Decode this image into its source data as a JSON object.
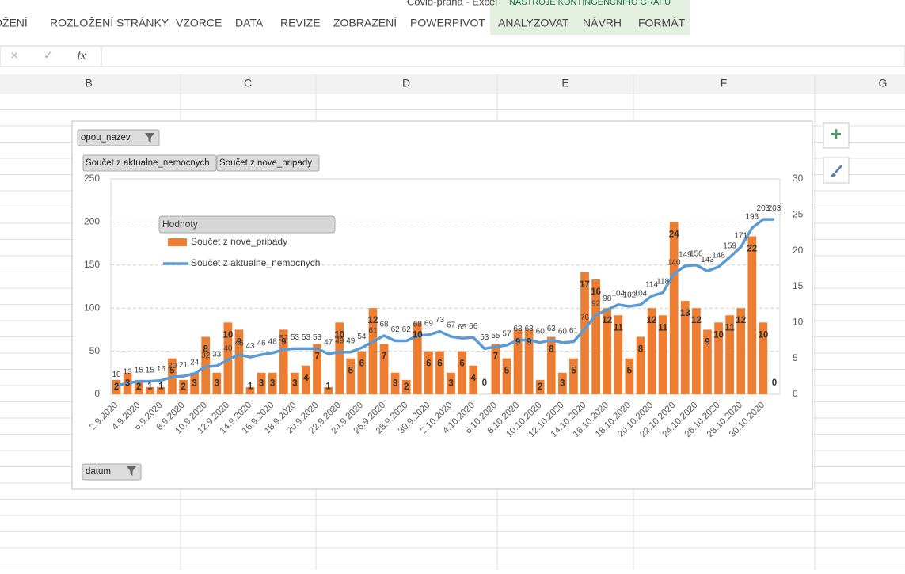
{
  "ui": {
    "window_title": "Covid-praha - Excel",
    "tool_tabs_title": "NÁSTROJE KONTINGENČNÍHO GRAFU",
    "ribbon_tabs": [
      "OŽENÍ",
      "ROZLOŽENÍ STRÁNKY",
      "VZORCE",
      "DATA",
      "REVIZE",
      "ZOBRAZENÍ",
      "POWERPIVOT"
    ],
    "tool_tabs": [
      "ANALYZOVAT",
      "NÁVRH",
      "FORMÁT"
    ],
    "fx": "fx",
    "columns": [
      "B",
      "C",
      "D",
      "E",
      "F",
      "G"
    ],
    "filter_button": "opou_nazev",
    "value_buttons": [
      "Součet z aktualne_nemocnych",
      "Součet z nove_pripady"
    ],
    "axis_button": "datum",
    "legend_title": "Hodnoty"
  },
  "chart_data": {
    "type": "bar",
    "categories": [
      "2.9.2020",
      null,
      "4.9.2020",
      null,
      "6.9.2020",
      null,
      "8.9.2020",
      null,
      "10.9.2020",
      null,
      "12.9.2020",
      null,
      "14.9.2020",
      null,
      "16.9.2020",
      null,
      "18.9.2020",
      null,
      "20.9.2020",
      null,
      "22.9.2020",
      null,
      "24.9.2020",
      null,
      "26.9.2020",
      null,
      "28.9.2020",
      null,
      "30.9.2020",
      null,
      "2.10.2020",
      null,
      "4.10.2020",
      null,
      "6.10.2020",
      null,
      "8.10.2020",
      null,
      "10.10.2020",
      null,
      "12.10.2020",
      null,
      "14.10.2020",
      null,
      "16.10.2020",
      null,
      "18.10.2020",
      null,
      "20.10.2020",
      null,
      "22.10.2020",
      null,
      "24.10.2020",
      null,
      "26.10.2020",
      null,
      "28.10.2020",
      null,
      "30.10.2020",
      null
    ],
    "series": [
      {
        "name": "Součet z nove_pripady",
        "color": "#ed7d31",
        "axis": "y2",
        "values": [
          2,
          3,
          2,
          1,
          1,
          5,
          2,
          3,
          8,
          3,
          10,
          9,
          1,
          3,
          3,
          9,
          3,
          4,
          7,
          1,
          10,
          5,
          6,
          12,
          7,
          3,
          2,
          10,
          6,
          6,
          3,
          6,
          4,
          0,
          7,
          5,
          9,
          9,
          2,
          8,
          3,
          5,
          17,
          16,
          12,
          11,
          5,
          8,
          12,
          11,
          24,
          13,
          12,
          9,
          10,
          11,
          12,
          22,
          10,
          0
        ]
      },
      {
        "name": "Součet z aktualne_nemocnych",
        "color": "#5b9bd5",
        "type": "line",
        "values": [
          10,
          13,
          15,
          15,
          16,
          20,
          21,
          24,
          32,
          33,
          40,
          46,
          43,
          46,
          48,
          52,
          53,
          53,
          53,
          47,
          49,
          49,
          54,
          61,
          68,
          62,
          62,
          68,
          69,
          73,
          67,
          65,
          66,
          53,
          55,
          57,
          63,
          63,
          60,
          63,
          60,
          61,
          76,
          92,
          98,
          104,
          102,
          104,
          114,
          118,
          140,
          149,
          150,
          143,
          148,
          159,
          171,
          193,
          203,
          203
        ]
      }
    ],
    "ylim": [
      0,
      250
    ],
    "yticks": [
      0,
      50,
      100,
      150,
      200,
      250
    ],
    "y2lim": [
      0,
      30
    ],
    "y2ticks": [
      0,
      5,
      10,
      15,
      20,
      25,
      30
    ],
    "grid": true
  }
}
